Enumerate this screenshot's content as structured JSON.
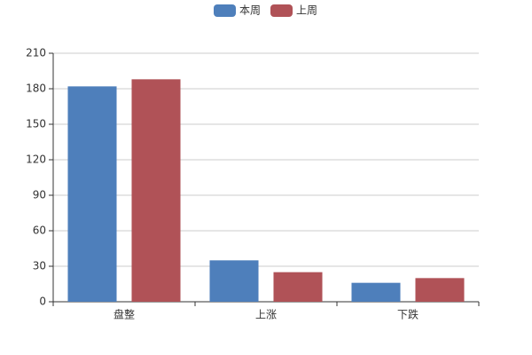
{
  "chart_data": {
    "type": "bar",
    "categories": [
      "盘整",
      "上涨",
      "下跌"
    ],
    "series": [
      {
        "name": "本周",
        "color": "#4e7fbb",
        "values": [
          182,
          35,
          16
        ]
      },
      {
        "name": "上周",
        "color": "#b05257",
        "values": [
          188,
          25,
          20
        ]
      }
    ],
    "ylim": [
      0,
      210
    ],
    "yticks": [
      0,
      30,
      60,
      90,
      120,
      150,
      180,
      210
    ],
    "grid": true,
    "legend": "top"
  }
}
